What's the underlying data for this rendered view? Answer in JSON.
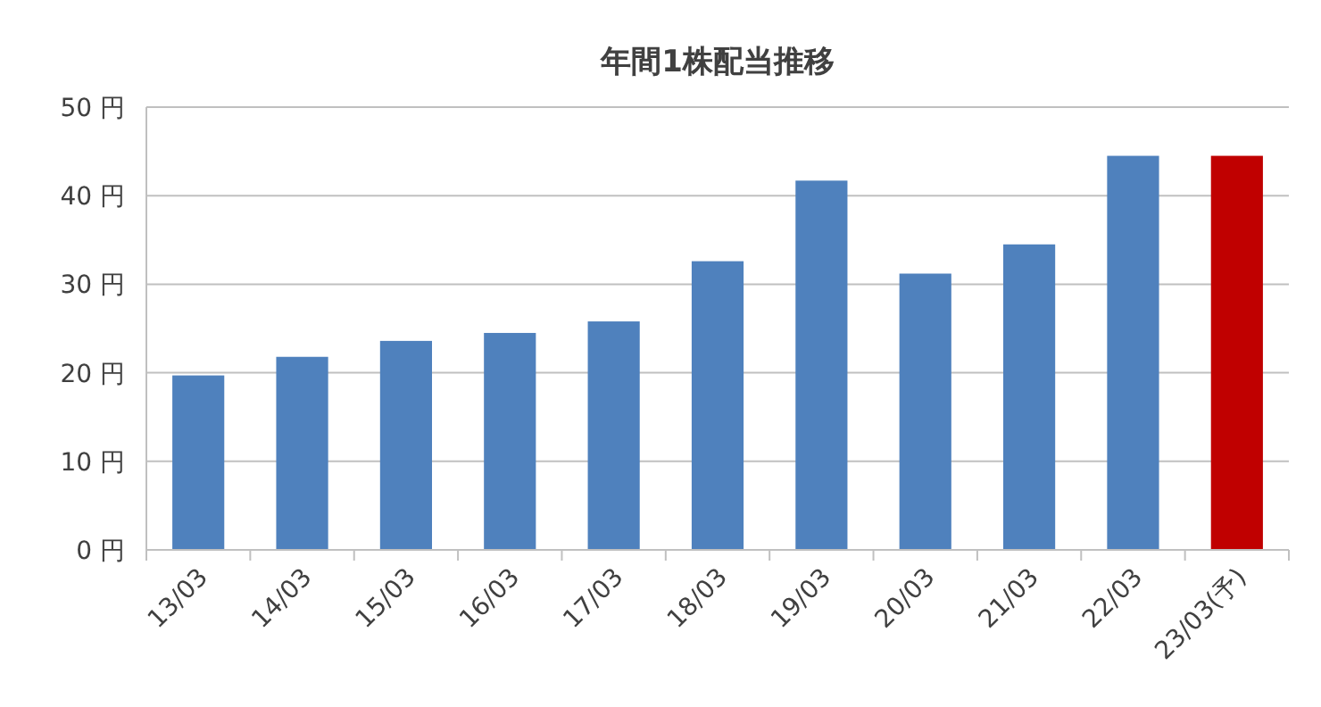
{
  "chart_data": {
    "type": "bar",
    "title": "年間1株配当推移",
    "categories": [
      "13/03",
      "14/03",
      "15/03",
      "16/03",
      "17/03",
      "18/03",
      "19/03",
      "20/03",
      "21/03",
      "22/03",
      "23/03(予)"
    ],
    "values": [
      19.7,
      21.8,
      23.6,
      24.5,
      25.8,
      32.6,
      41.7,
      31.2,
      34.5,
      44.5,
      44.5
    ],
    "colors": [
      "#4f81bd",
      "#4f81bd",
      "#4f81bd",
      "#4f81bd",
      "#4f81bd",
      "#4f81bd",
      "#4f81bd",
      "#4f81bd",
      "#4f81bd",
      "#4f81bd",
      "#c00000"
    ],
    "ylim": [
      0,
      50
    ],
    "yticks": [
      {
        "value": 0,
        "label": "0 円"
      },
      {
        "value": 10,
        "label": "10 円"
      },
      {
        "value": 20,
        "label": "20 円"
      },
      {
        "value": 30,
        "label": "30 円"
      },
      {
        "value": 40,
        "label": "40 円"
      },
      {
        "value": 50,
        "label": "50 円"
      }
    ],
    "grid": "y"
  }
}
